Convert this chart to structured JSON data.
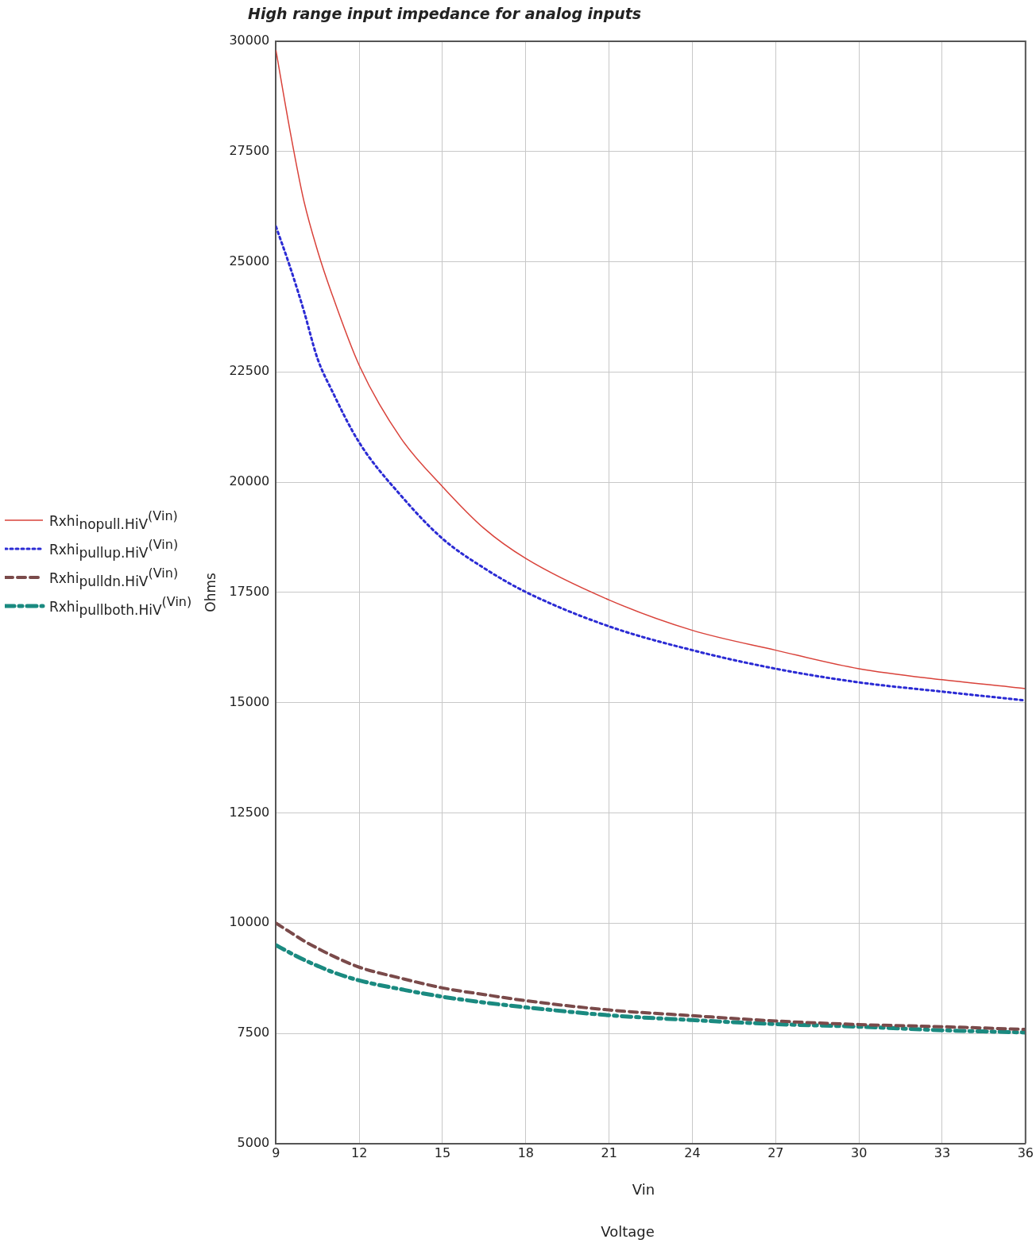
{
  "chart_data": {
    "type": "line",
    "title": "High range input impedance for analog inputs",
    "xlabel": "Vin",
    "ylabel": "Ohms",
    "annotations": [
      "Voltage"
    ],
    "x": [
      9,
      9.5,
      10,
      10.5,
      11,
      12,
      13.5,
      15,
      16.5,
      18,
      21,
      24,
      27,
      30,
      33,
      36
    ],
    "series": [
      {
        "name": "Rxhi$_{nopull.HiV}$$^{(Vin)}$",
        "color": "#d9423a",
        "line_style": "solid",
        "values": [
          29800,
          28000,
          26400,
          25250,
          24300,
          22650,
          21000,
          19900,
          18950,
          18270,
          17330,
          16640,
          16190,
          15770,
          15520,
          15320
        ]
      },
      {
        "name": "Rxhi$_{pullup.HiV}$$^{(Vin)}$",
        "color": "#2b2bd4",
        "line_style": "dotted",
        "values": [
          25800,
          24900,
          23900,
          22800,
          22100,
          20900,
          19700,
          18720,
          18050,
          17510,
          16730,
          16190,
          15770,
          15460,
          15250,
          15050
        ]
      },
      {
        "name": "Rxhi$_{pulldn.HiV}$$^{(Vin)}$",
        "color": "#7a4a4a",
        "line_style": "dashed",
        "values": [
          10000,
          9800,
          9600,
          9430,
          9270,
          9000,
          8750,
          8530,
          8380,
          8240,
          8030,
          7900,
          7780,
          7700,
          7650,
          7590
        ]
      },
      {
        "name": "Rxhi$_{pullboth.HiV}$$^{(Vin)}$",
        "color": "#1a8a80",
        "line_style": "dashdot",
        "values": [
          9500,
          9330,
          9170,
          9030,
          8900,
          8700,
          8500,
          8330,
          8200,
          8090,
          7910,
          7800,
          7710,
          7650,
          7570,
          7520
        ]
      }
    ],
    "xlim": [
      9,
      36
    ],
    "xticks": [
      9,
      12,
      15,
      18,
      21,
      24,
      27,
      30,
      33,
      36
    ],
    "ylim": [
      5000,
      30000
    ],
    "yticks": [
      5000,
      7500,
      10000,
      12500,
      15000,
      17500,
      20000,
      22500,
      25000,
      27500,
      30000
    ],
    "grid": true,
    "legend": "left",
    "marker": "none"
  }
}
